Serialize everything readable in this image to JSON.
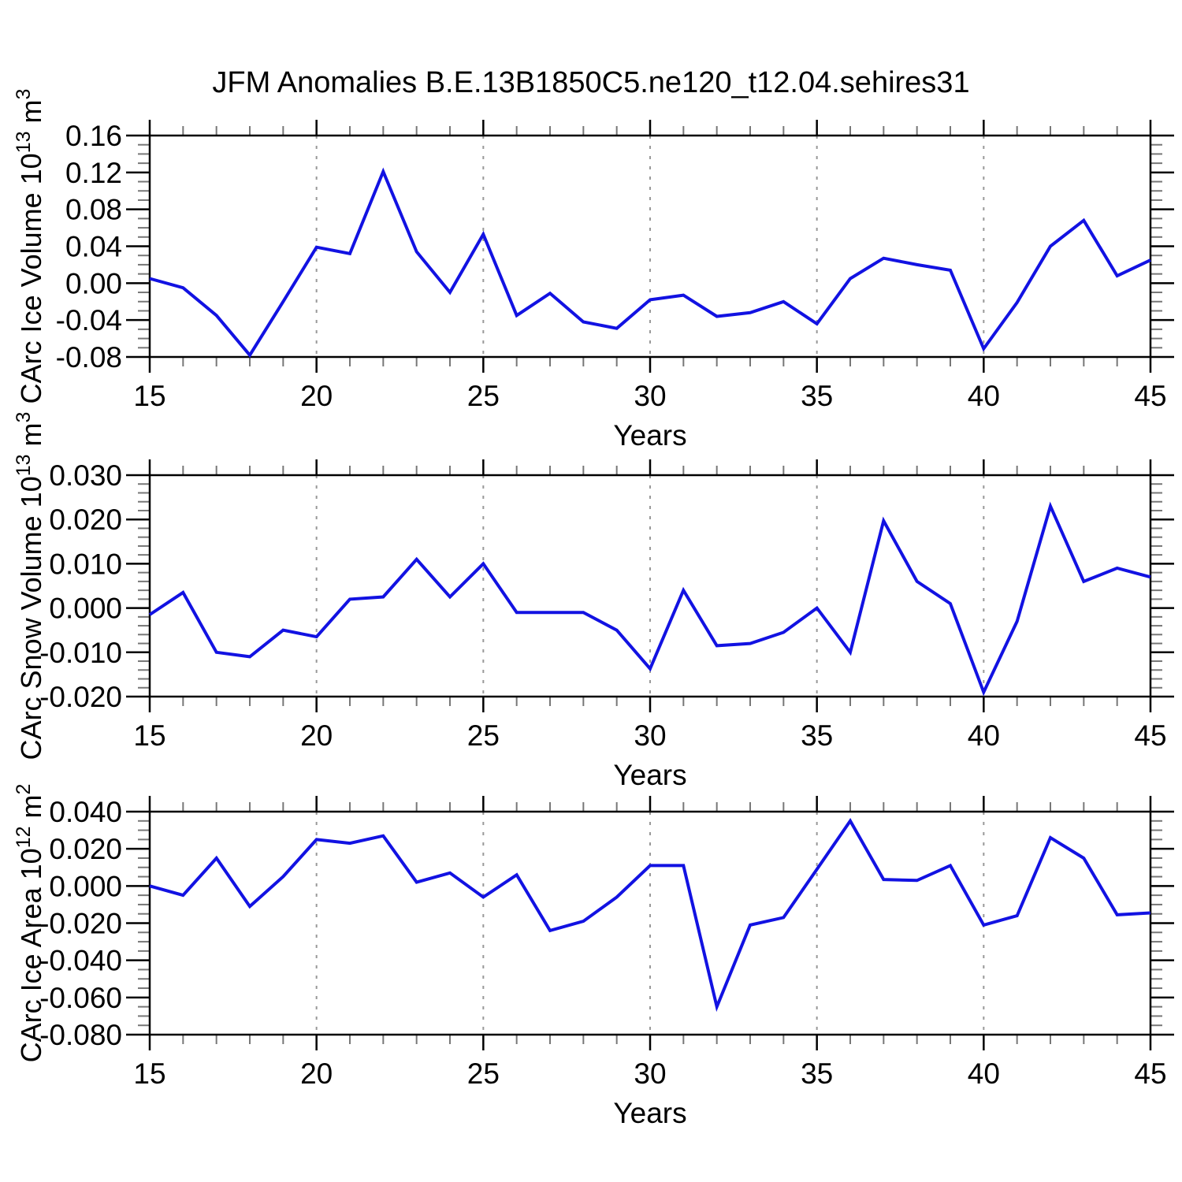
{
  "title": "JFM Anomalies B.E.13B1850C5.ne120_t12.04.sehires31",
  "line_color": "#1212e2",
  "axis_color": "#000000",
  "minor_tick_color": "#777777",
  "gridline_color": "#999999",
  "chart_data": [
    {
      "type": "line",
      "ylabel": "CArc Ice Volume 10^13 m^3",
      "ylabel_parts": [
        {
          "t": "CArc Ice Volume 10"
        },
        {
          "t": "13",
          "sup": true
        },
        {
          "t": " m"
        },
        {
          "t": "3",
          "sup": true
        }
      ],
      "xlabel": "Years",
      "xlim": [
        15,
        45
      ],
      "xticks": [
        15,
        20,
        25,
        30,
        35,
        40,
        45
      ],
      "x_minor_step": 1,
      "gridlines_x": [
        20,
        25,
        30,
        35,
        40
      ],
      "ylim": [
        -0.08,
        0.16
      ],
      "y_minor_step": 0.01,
      "yticks": [
        {
          "v": 0.16,
          "label": "0.16"
        },
        {
          "v": 0.12,
          "label": "0.12"
        },
        {
          "v": 0.08,
          "label": "0.08"
        },
        {
          "v": 0.04,
          "label": "0.04"
        },
        {
          "v": 0.0,
          "label": "0.00"
        },
        {
          "v": -0.04,
          "label": "-0.04"
        },
        {
          "v": -0.08,
          "label": "-0.08"
        }
      ],
      "x": [
        15,
        16,
        17,
        18,
        19,
        20,
        21,
        22,
        23,
        24,
        25,
        26,
        27,
        28,
        29,
        30,
        31,
        32,
        33,
        34,
        35,
        36,
        37,
        38,
        39,
        40,
        41,
        42,
        43,
        44,
        45
      ],
      "values": [
        0.005,
        -0.005,
        -0.035,
        -0.078,
        -0.02,
        0.039,
        0.032,
        0.121,
        0.034,
        -0.01,
        0.053,
        -0.035,
        -0.011,
        -0.042,
        -0.049,
        -0.018,
        -0.013,
        -0.036,
        -0.032,
        -0.02,
        -0.044,
        0.005,
        0.027,
        0.02,
        0.014,
        -0.071,
        -0.021,
        0.04,
        0.068,
        0.008,
        0.025
      ]
    },
    {
      "type": "line",
      "ylabel": "CArc Snow Volume 10^13 m^3",
      "ylabel_parts": [
        {
          "t": "CArc Snow Volume 10"
        },
        {
          "t": "13",
          "sup": true
        },
        {
          "t": " m"
        },
        {
          "t": "3",
          "sup": true
        }
      ],
      "xlabel": "Years",
      "xlim": [
        15,
        45
      ],
      "xticks": [
        15,
        20,
        25,
        30,
        35,
        40,
        45
      ],
      "x_minor_step": 1,
      "gridlines_x": [
        20,
        25,
        30,
        35,
        40
      ],
      "ylim": [
        -0.02,
        0.03
      ],
      "y_minor_step": 0.002,
      "yticks": [
        {
          "v": 0.03,
          "label": "0.030"
        },
        {
          "v": 0.02,
          "label": "0.020"
        },
        {
          "v": 0.01,
          "label": "0.010"
        },
        {
          "v": 0.0,
          "label": "0.000"
        },
        {
          "v": -0.01,
          "label": "-0.010"
        },
        {
          "v": -0.02,
          "label": "-0.020"
        }
      ],
      "x": [
        15,
        16,
        17,
        18,
        19,
        20,
        21,
        22,
        23,
        24,
        25,
        26,
        27,
        28,
        29,
        30,
        31,
        32,
        33,
        34,
        35,
        36,
        37,
        38,
        39,
        40,
        41,
        42,
        43,
        44,
        45
      ],
      "values": [
        -0.0015,
        0.0035,
        -0.01,
        -0.011,
        -0.005,
        -0.0065,
        0.002,
        0.0025,
        0.011,
        0.0025,
        0.01,
        -0.001,
        -0.001,
        -0.001,
        -0.005,
        -0.0137,
        0.004,
        -0.0085,
        -0.008,
        -0.0055,
        0.0,
        -0.01,
        0.0197,
        0.006,
        0.001,
        -0.019,
        -0.003,
        0.023,
        0.006,
        0.009,
        0.007
      ]
    },
    {
      "type": "line",
      "ylabel": "CArc Ice Area 10^12 m^2",
      "ylabel_parts": [
        {
          "t": "CArc Ice Area 10"
        },
        {
          "t": "12",
          "sup": true
        },
        {
          "t": " m"
        },
        {
          "t": "2",
          "sup": true
        }
      ],
      "xlabel": "Years",
      "xlim": [
        15,
        45
      ],
      "xticks": [
        15,
        20,
        25,
        30,
        35,
        40,
        45
      ],
      "x_minor_step": 1,
      "gridlines_x": [
        20,
        25,
        30,
        35,
        40
      ],
      "ylim": [
        -0.08,
        0.04
      ],
      "y_minor_step": 0.005,
      "yticks": [
        {
          "v": 0.04,
          "label": "0.040"
        },
        {
          "v": 0.02,
          "label": "0.020"
        },
        {
          "v": 0.0,
          "label": "0.000"
        },
        {
          "v": -0.02,
          "label": "-0.020"
        },
        {
          "v": -0.04,
          "label": "-0.040"
        },
        {
          "v": -0.06,
          "label": "-0.060"
        },
        {
          "v": -0.08,
          "label": "-0.080"
        }
      ],
      "x": [
        15,
        16,
        17,
        18,
        19,
        20,
        21,
        22,
        23,
        24,
        25,
        26,
        27,
        28,
        29,
        30,
        31,
        32,
        33,
        34,
        35,
        36,
        37,
        38,
        39,
        40,
        41,
        42,
        43,
        44,
        45
      ],
      "values": [
        0.0,
        -0.005,
        0.015,
        -0.011,
        0.005,
        0.025,
        0.023,
        0.027,
        0.002,
        0.007,
        -0.006,
        0.006,
        -0.024,
        -0.019,
        -0.006,
        0.011,
        0.011,
        -0.065,
        -0.021,
        -0.017,
        0.009,
        0.035,
        0.0035,
        0.003,
        0.011,
        -0.021,
        -0.016,
        0.026,
        0.015,
        -0.0155,
        -0.0145
      ]
    }
  ]
}
